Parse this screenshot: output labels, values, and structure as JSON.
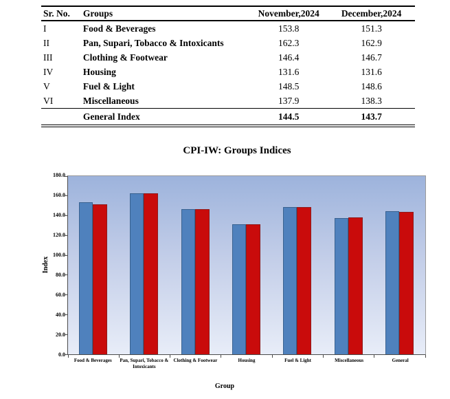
{
  "table": {
    "headers": [
      "Sr. No.",
      "Groups",
      "November,2024",
      "December,2024"
    ],
    "rows": [
      {
        "sr": "I",
        "group": "Food & Beverages",
        "nov": "153.8",
        "dec": "151.3"
      },
      {
        "sr": "II",
        "group": "Pan, Supari, Tobacco & Intoxicants",
        "nov": "162.3",
        "dec": "162.9"
      },
      {
        "sr": "III",
        "group": "Clothing & Footwear",
        "nov": "146.4",
        "dec": "146.7"
      },
      {
        "sr": "IV",
        "group": "Housing",
        "nov": "131.6",
        "dec": "131.6"
      },
      {
        "sr": "V",
        "group": "Fuel & Light",
        "nov": "148.5",
        "dec": "148.6"
      },
      {
        "sr": "VI",
        "group": "Miscellaneous",
        "nov": "137.9",
        "dec": "138.3"
      }
    ],
    "footer": {
      "sr": "",
      "group": "General Index",
      "nov": "144.5",
      "dec": "143.7"
    }
  },
  "chart_data": {
    "type": "bar",
    "title": "CPI-IW: Groups Indices",
    "xlabel": "Group",
    "ylabel": "Index",
    "ylim": [
      0,
      180
    ],
    "ytick_step": 20,
    "grid": false,
    "legend": "none",
    "categories": [
      "Food & Beverages",
      "Pan, Supari, Tobacco & Intoxicants",
      "Clothing & Footwear",
      "Housing",
      "Fuel & Light",
      "Miscellaneous",
      "General"
    ],
    "series": [
      {
        "name": "November,2024",
        "color": "#4f81bd",
        "values": [
          153.8,
          162.3,
          146.4,
          131.6,
          148.5,
          137.9,
          144.5
        ]
      },
      {
        "name": "December,2024",
        "color": "#c90b0b",
        "values": [
          151.3,
          162.9,
          146.7,
          131.6,
          148.6,
          138.3,
          143.7
        ]
      }
    ],
    "plot_background_top": "#9db3dc",
    "plot_background_bottom": "#e8edf8"
  }
}
